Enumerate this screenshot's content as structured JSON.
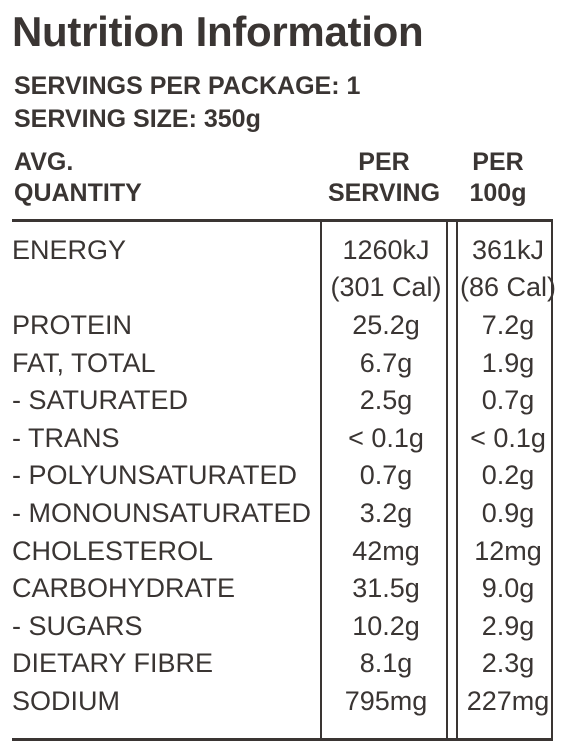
{
  "title": "Nutrition Information",
  "servings_per_package": "SERVINGS PER PACKAGE: 1",
  "serving_size": "SERVING SIZE: 350g",
  "headers": {
    "quantity_line1": "AVG.",
    "quantity_line2": "QUANTITY",
    "per_serving_line1": "PER",
    "per_serving_line2": "SERVING",
    "per_100g_line1": "PER",
    "per_100g_line2": "100g"
  },
  "energy": {
    "name": "ENERGY",
    "per_serving": "1260kJ",
    "per_serving_cal": "(301 Cal)",
    "per_100g": "361kJ",
    "per_100g_cal": "(86 Cal)"
  },
  "rows": [
    {
      "name": "PROTEIN",
      "per_serving": "25.2g",
      "per_100g": "7.2g"
    },
    {
      "name": "FAT, TOTAL",
      "per_serving": "6.7g",
      "per_100g": "1.9g"
    },
    {
      "name": "- SATURATED",
      "per_serving": "2.5g",
      "per_100g": "0.7g"
    },
    {
      "name": "- TRANS",
      "per_serving": "< 0.1g",
      "per_100g": "< 0.1g"
    },
    {
      "name": "- POLYUNSATURATED",
      "per_serving": "0.7g",
      "per_100g": "0.2g"
    },
    {
      "name": "- MONOUNSATURATED",
      "per_serving": "3.2g",
      "per_100g": "0.9g"
    },
    {
      "name": "CHOLESTEROL",
      "per_serving": "42mg",
      "per_100g": "12mg"
    },
    {
      "name": "CARBOHYDRATE",
      "per_serving": "31.5g",
      "per_100g": "9.0g"
    },
    {
      "name": "- SUGARS",
      "per_serving": "10.2g",
      "per_100g": "2.9g"
    },
    {
      "name": "DIETARY FIBRE",
      "per_serving": "8.1g",
      "per_100g": "2.3g"
    },
    {
      "name": "SODIUM",
      "per_serving": "795mg",
      "per_100g": "227mg"
    }
  ]
}
